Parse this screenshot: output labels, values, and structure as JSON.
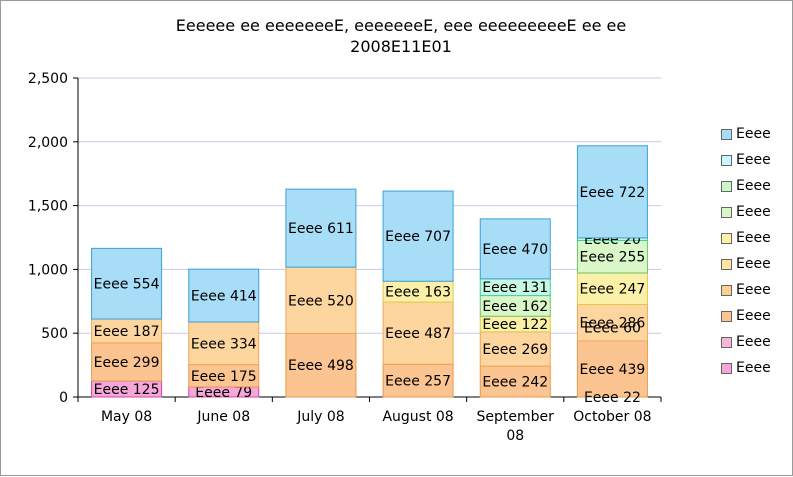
{
  "chart_data": {
    "type": "bar",
    "stacked": true,
    "title_line1": "Eeeeee ee eeeeeeeE, eeeeeeeE, eee eeeeeeeeeE ee ee",
    "title_line2": "2008E11E01",
    "xlabel": "",
    "ylabel": "",
    "ylim": [
      0,
      2500
    ],
    "yticks": [
      "0",
      "500",
      "1,000",
      "1,500",
      "2,000",
      "2,500"
    ],
    "grid": true,
    "legend_position": "right",
    "categories": [
      "May 08",
      "June 08",
      "July 08",
      "August 08",
      "September\n08",
      "October 08"
    ],
    "series": [
      {
        "name": "Eeee",
        "color": "#f6a6d8",
        "border": "#d04aa6",
        "values": [
          125,
          79,
          0,
          0,
          0,
          0
        ],
        "labels": [
          "Eeee 125",
          "Eeee 79",
          "",
          "",
          "",
          ""
        ]
      },
      {
        "name": "Eeee",
        "color": "#fcc491",
        "border": "#e89a4a",
        "values": [
          299,
          175,
          498,
          257,
          242,
          439
        ],
        "labels": [
          "Eeee 299",
          "Eeee 175",
          "Eeee 498",
          "Eeee 257",
          "Eeee 242",
          "Eeee 439"
        ]
      },
      {
        "name": "Eeee",
        "color": "#fdd59e",
        "border": "#eaa85a",
        "values": [
          187,
          334,
          520,
          487,
          269,
          286
        ],
        "labels": [
          "Eeee 187",
          "Eeee 334",
          "Eeee 520",
          "Eeee 487",
          "Eeee 269",
          "Eeee 286"
        ]
      },
      {
        "name": "Eeee",
        "color": "#fbf0a8",
        "border": "#e2c84a",
        "values": [
          0,
          0,
          0,
          163,
          122,
          247
        ],
        "labels": [
          "",
          "",
          "",
          "Eeee 163",
          "Eeee 122",
          "Eeee 247"
        ]
      },
      {
        "name": "Eeee",
        "color": "#d9f7c8",
        "border": "#6cc46a",
        "values": [
          0,
          0,
          0,
          0,
          162,
          255
        ],
        "labels": [
          "",
          "",
          "",
          "",
          "Eeee 162",
          "Eeee 255"
        ]
      },
      {
        "name": "Eeee",
        "color": "#c8f8e4",
        "border": "#3ccfa2",
        "values": [
          0,
          0,
          0,
          0,
          131,
          20
        ],
        "labels": [
          "",
          "",
          "",
          "",
          "Eeee 131",
          "Eeee 20"
        ]
      },
      {
        "name": "Eeee",
        "color": "#a7ddf6",
        "border": "#3ba0d6",
        "values": [
          554,
          414,
          611,
          707,
          470,
          722
        ],
        "labels": [
          "Eeee 554",
          "Eeee 414",
          "Eeee 611",
          "Eeee 707",
          "Eeee 470",
          "Eeee 722"
        ]
      }
    ],
    "extra_labels": [
      {
        "category_index": 5,
        "value": 60,
        "label": "Eeee 60"
      },
      {
        "category_index": 5,
        "value": 22,
        "label": "Eeee 22"
      }
    ],
    "legend": [
      {
        "label": "Eeee",
        "color": "#a7ddf6"
      },
      {
        "label": "Eeee",
        "color": "#c8f8ff"
      },
      {
        "label": "Eeee",
        "color": "#c8f8c8"
      },
      {
        "label": "Eeee",
        "color": "#d9f7c8"
      },
      {
        "label": "Eeee",
        "color": "#fbf0a8"
      },
      {
        "label": "Eeee",
        "color": "#fde7a0"
      },
      {
        "label": "Eeee",
        "color": "#fcd091"
      },
      {
        "label": "Eeee",
        "color": "#fcc491"
      },
      {
        "label": "Eeee",
        "color": "#f6b6d8"
      },
      {
        "label": "Eeee",
        "color": "#f6a6d8"
      }
    ]
  }
}
